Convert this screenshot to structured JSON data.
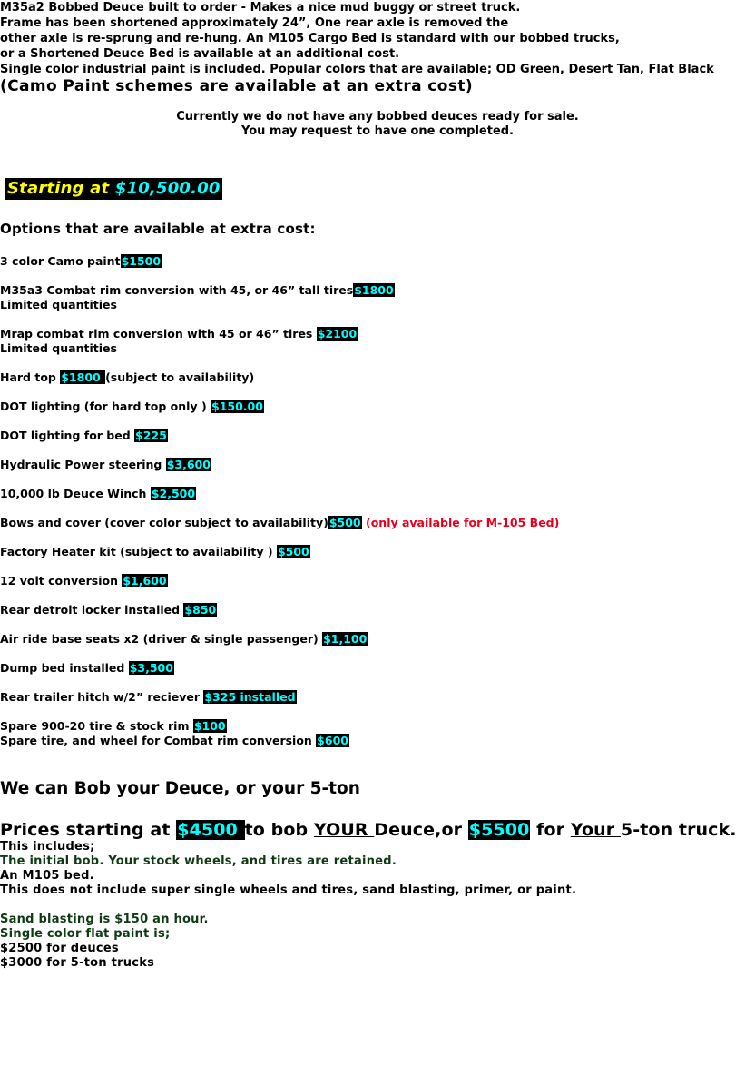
{
  "intro": {
    "lines": [
      "M35a2 Bobbed Deuce built to order - Makes a nice mud buggy or street truck.",
      "Frame has been shortened approximately 24”, One rear axle is removed the",
      "other axle is re-sprung and re-hung. An M105 Cargo Bed is standard with our bobbed trucks,",
      "or a Shortened Deuce Bed is  available at an additional cost.",
      "Single color industrial paint is included. Popular colors that are available; OD Green, Desert Tan, Flat Black"
    ],
    "camo_note": "(Camo Paint schemes are available at an extra cost)"
  },
  "availability": {
    "line1": "Currently we do not have any bobbed deuces ready for sale.",
    "line2": "You may request to have one completed."
  },
  "starting": {
    "label": "Starting at",
    "price": "$10,500.00"
  },
  "options_heading": "Options that are available at extra cost:",
  "options": [
    {
      "label": "3 color Camo paint",
      "price": "$1500",
      "suffix": "",
      "note": ""
    },
    {
      "label": "M35a3 Combat rim conversion with 45, or 46” tall tires",
      "price": "$1800",
      "suffix": "",
      "note": "Limited quantities"
    },
    {
      "label": "Mrap combat rim conversion with 45 or 46” tires ",
      "price": " $2100",
      "suffix": "",
      "note": "Limited quantities"
    },
    {
      "label": "Hard top  ",
      "price": " $1800  ",
      "suffix": "  (subject to availability)",
      "note": ""
    },
    {
      "label": "DOT lighting (for hard top only ) ",
      "price": "$150.00",
      "suffix": "",
      "note": ""
    },
    {
      "label": "DOT lighting for bed ",
      "price": "$225",
      "suffix": "",
      "note": ""
    },
    {
      "label": "Hydraulic Power steering ",
      "price": "$3,600",
      "suffix": "",
      "note": ""
    },
    {
      "label": "10,000 lb Deuce Winch ",
      "price": "$2,500",
      "suffix": "",
      "note": ""
    },
    {
      "label": "Bows and cover (cover color subject to availability)",
      "price": "$500",
      "suffix": "",
      "note": "",
      "red": " (only available for M-105 Bed)"
    },
    {
      "label": "Factory Heater kit (subject to availability ) ",
      "price": "$500",
      "suffix": "",
      "note": ""
    },
    {
      "label": "12 volt conversion ",
      "price": "$1,600",
      "suffix": "",
      "note": ""
    },
    {
      "label": "Rear detroit locker installed ",
      "price": "$850",
      "suffix": "",
      "note": ""
    },
    {
      "label": "Air ride base seats x2 (driver & single passenger) ",
      "price": "$1,100",
      "suffix": "",
      "note": ""
    },
    {
      "label": "Dump bed installed ",
      "price": "$3,500",
      "suffix": "",
      "note": ""
    },
    {
      "label": "Rear trailer hitch w/2” reciever ",
      "price": "$325 installed",
      "suffix": "",
      "note": ""
    },
    {
      "label": "Spare 900-20 tire & stock rim ",
      "price": "$100",
      "suffix": "",
      "note": "Spare tire, and wheel for Combat rim conversion ",
      "note_price": "$600"
    }
  ],
  "bob": {
    "heading": "We can Bob your Deuce, or your 5-ton",
    "p1": "Prices starting at ",
    "price1": "$4500 ",
    "p2": "to bob ",
    "your1": "YOUR ",
    "p3": "Deuce,or  ",
    "price2": "$5500",
    "p4": " for ",
    "your2": "Your ",
    "p5": "5-ton truck."
  },
  "includes": [
    "This includes;",
    "The initial bob. Your stock wheels, and tires are retained.",
    "An M105 bed.",
    "This does not include super single wheels and tires, sand blasting, primer, or paint."
  ],
  "paint_info": [
    "Sand blasting is $150 an hour.",
    "Single color flat paint is;",
    "$2500 for deuces",
    "$3000 for 5-ton trucks"
  ],
  "colors": {
    "price_bg": "#000000",
    "price_text": "#00ffff",
    "starting_label": "#ffff00",
    "red_note": "#e8001c",
    "green_text": "#0e3a12"
  }
}
